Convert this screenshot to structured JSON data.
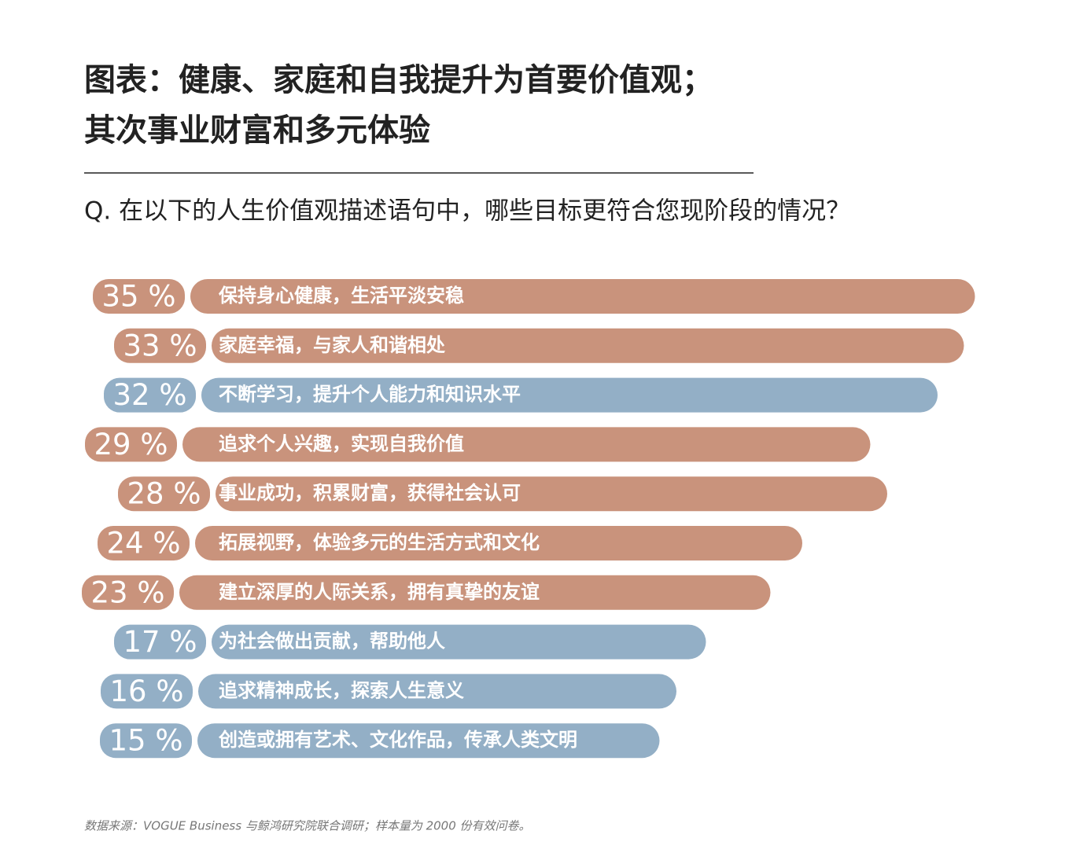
{
  "chart_data": {
    "type": "bar",
    "title": [
      "图表：健康、家庭和自我提升为首要价值观；",
      "其次事业财富和多元体验"
    ],
    "subtitle": "Q. 在以下的人生价值观描述语句中，哪些目标更符合您现阶段的情况？",
    "categories": [
      "保持身心健康，生活平淡安稳",
      "家庭幸福，与家人和谐相处",
      "不断学习，提升个人能力和知识水平",
      "追求个人兴趣，实现自我价值",
      "事业成功，积累财富，获得社会认可",
      "拓展视野，体验多元的生活方式和文化",
      "建立深厚的人际关系，拥有真挚的友谊",
      "为社会做出贡献，帮助他人",
      "追求精神成长，探索人生意义",
      "创造或拥有艺术、文化作品，传承人类文明"
    ],
    "values": [
      35,
      33,
      32,
      29,
      28,
      24,
      23,
      17,
      16,
      15
    ],
    "value_labels": [
      "35 %",
      "33 %",
      "32 %",
      "29 %",
      "28 %",
      "24 %",
      "23 %",
      "17 %",
      "16 %",
      "15 %"
    ],
    "colors": [
      "#c9937c",
      "#c9937c",
      "#93afc6",
      "#c9937c",
      "#c9937c",
      "#c9937c",
      "#c9937c",
      "#93afc6",
      "#93afc6",
      "#93afc6"
    ],
    "source": "数据来源：VOGUE Business 与鲸鸿研究院联合调研；样本量为 2000 份有效问卷。"
  }
}
